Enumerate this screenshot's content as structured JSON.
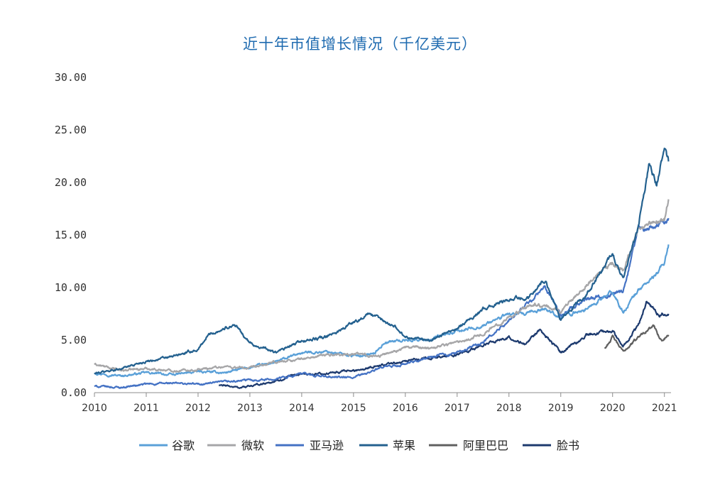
{
  "chart_data": {
    "type": "line",
    "title": "近十年市值增长情况（千亿美元）",
    "xlabel": "",
    "ylabel": "",
    "xlim": [
      2010,
      2021.1
    ],
    "ylim": [
      0,
      30
    ],
    "y_ticks": [
      "0.00",
      "5.00",
      "10.00",
      "15.00",
      "20.00",
      "25.00",
      "30.00"
    ],
    "x_ticks": [
      "2010",
      "2011",
      "2012",
      "2013",
      "2014",
      "2015",
      "2016",
      "2017",
      "2018",
      "2019",
      "2020",
      "2021"
    ],
    "grid": false,
    "legend_position": "bottom",
    "series": [
      {
        "name": "谷歌",
        "color": "#5aa0d8",
        "points": [
          [
            2010.0,
            1.9
          ],
          [
            2010.5,
            1.6
          ],
          [
            2011.0,
            1.9
          ],
          [
            2011.5,
            1.7
          ],
          [
            2012.0,
            2.0
          ],
          [
            2012.5,
            1.9
          ],
          [
            2013.0,
            2.4
          ],
          [
            2013.5,
            2.9
          ],
          [
            2014.0,
            3.8
          ],
          [
            2014.5,
            3.9
          ],
          [
            2015.0,
            3.5
          ],
          [
            2015.4,
            3.7
          ],
          [
            2015.6,
            4.8
          ],
          [
            2016.0,
            5.0
          ],
          [
            2016.5,
            5.1
          ],
          [
            2017.0,
            5.8
          ],
          [
            2017.5,
            6.4
          ],
          [
            2018.0,
            7.5
          ],
          [
            2018.3,
            7.4
          ],
          [
            2018.7,
            8.0
          ],
          [
            2019.0,
            7.2
          ],
          [
            2019.5,
            8.0
          ],
          [
            2020.0,
            9.6
          ],
          [
            2020.2,
            7.6
          ],
          [
            2020.5,
            9.8
          ],
          [
            2020.8,
            11.0
          ],
          [
            2021.0,
            12.3
          ],
          [
            2021.08,
            14.1
          ]
        ]
      },
      {
        "name": "微软",
        "color": "#a6a6a8",
        "points": [
          [
            2010.0,
            2.7
          ],
          [
            2010.5,
            2.1
          ],
          [
            2011.0,
            2.3
          ],
          [
            2011.5,
            2.1
          ],
          [
            2012.0,
            2.2
          ],
          [
            2012.5,
            2.5
          ],
          [
            2013.0,
            2.3
          ],
          [
            2013.5,
            2.9
          ],
          [
            2014.0,
            3.2
          ],
          [
            2014.5,
            3.6
          ],
          [
            2015.0,
            3.7
          ],
          [
            2015.5,
            3.5
          ],
          [
            2016.0,
            4.3
          ],
          [
            2016.5,
            4.3
          ],
          [
            2017.0,
            4.8
          ],
          [
            2017.5,
            5.6
          ],
          [
            2018.0,
            7.2
          ],
          [
            2018.5,
            8.4
          ],
          [
            2019.0,
            7.8
          ],
          [
            2019.5,
            10.3
          ],
          [
            2020.0,
            12.3
          ],
          [
            2020.2,
            11.6
          ],
          [
            2020.5,
            15.5
          ],
          [
            2020.8,
            16.2
          ],
          [
            2021.0,
            16.6
          ],
          [
            2021.08,
            18.4
          ]
        ]
      },
      {
        "name": "亚马逊",
        "color": "#4472c4",
        "points": [
          [
            2010.0,
            0.6
          ],
          [
            2010.5,
            0.5
          ],
          [
            2011.0,
            0.8
          ],
          [
            2011.5,
            0.9
          ],
          [
            2012.0,
            0.8
          ],
          [
            2012.5,
            1.0
          ],
          [
            2013.0,
            1.2
          ],
          [
            2013.5,
            1.3
          ],
          [
            2014.0,
            1.8
          ],
          [
            2014.5,
            1.5
          ],
          [
            2015.0,
            1.4
          ],
          [
            2015.5,
            2.3
          ],
          [
            2016.0,
            2.7
          ],
          [
            2016.5,
            3.4
          ],
          [
            2017.0,
            3.8
          ],
          [
            2017.5,
            4.8
          ],
          [
            2018.0,
            6.8
          ],
          [
            2018.7,
            10.0
          ],
          [
            2019.0,
            7.4
          ],
          [
            2019.5,
            9.0
          ],
          [
            2020.0,
            9.4
          ],
          [
            2020.2,
            9.5
          ],
          [
            2020.5,
            15.5
          ],
          [
            2020.8,
            15.8
          ],
          [
            2021.0,
            16.3
          ],
          [
            2021.08,
            16.6
          ]
        ]
      },
      {
        "name": "苹果",
        "color": "#24618f",
        "points": [
          [
            2010.0,
            1.8
          ],
          [
            2010.5,
            2.3
          ],
          [
            2011.0,
            3.0
          ],
          [
            2011.5,
            3.4
          ],
          [
            2012.0,
            4.1
          ],
          [
            2012.2,
            5.5
          ],
          [
            2012.7,
            6.5
          ],
          [
            2013.0,
            4.7
          ],
          [
            2013.5,
            3.8
          ],
          [
            2014.0,
            4.9
          ],
          [
            2014.5,
            5.3
          ],
          [
            2015.0,
            6.7
          ],
          [
            2015.3,
            7.5
          ],
          [
            2015.8,
            6.3
          ],
          [
            2016.0,
            5.3
          ],
          [
            2016.5,
            5.0
          ],
          [
            2017.0,
            6.2
          ],
          [
            2017.5,
            7.9
          ],
          [
            2018.0,
            8.9
          ],
          [
            2018.4,
            9.2
          ],
          [
            2018.7,
            10.8
          ],
          [
            2019.0,
            6.9
          ],
          [
            2019.5,
            9.3
          ],
          [
            2020.0,
            13.2
          ],
          [
            2020.2,
            10.7
          ],
          [
            2020.5,
            15.8
          ],
          [
            2020.7,
            21.6
          ],
          [
            2020.85,
            19.8
          ],
          [
            2021.0,
            23.3
          ],
          [
            2021.08,
            22.0
          ]
        ]
      },
      {
        "name": "阿里巴巴",
        "color": "#606060",
        "points": [
          [
            2019.85,
            4.2
          ],
          [
            2020.0,
            5.3
          ],
          [
            2020.2,
            3.9
          ],
          [
            2020.4,
            4.8
          ],
          [
            2020.6,
            5.8
          ],
          [
            2020.8,
            6.3
          ],
          [
            2020.95,
            4.9
          ],
          [
            2021.08,
            5.5
          ]
        ]
      },
      {
        "name": "脸书",
        "color": "#1d3a6e",
        "points": [
          [
            2012.4,
            0.7
          ],
          [
            2012.8,
            0.5
          ],
          [
            2013.0,
            0.6
          ],
          [
            2013.5,
            1.1
          ],
          [
            2014.0,
            1.8
          ],
          [
            2014.5,
            1.8
          ],
          [
            2015.0,
            2.1
          ],
          [
            2015.5,
            2.6
          ],
          [
            2016.0,
            3.0
          ],
          [
            2016.5,
            3.3
          ],
          [
            2017.0,
            3.6
          ],
          [
            2017.5,
            4.5
          ],
          [
            2018.0,
            5.3
          ],
          [
            2018.3,
            4.6
          ],
          [
            2018.6,
            6.0
          ],
          [
            2019.0,
            3.8
          ],
          [
            2019.5,
            5.5
          ],
          [
            2020.0,
            5.9
          ],
          [
            2020.2,
            4.3
          ],
          [
            2020.5,
            6.5
          ],
          [
            2020.65,
            8.6
          ],
          [
            2020.9,
            7.4
          ],
          [
            2021.08,
            7.5
          ]
        ]
      }
    ]
  }
}
